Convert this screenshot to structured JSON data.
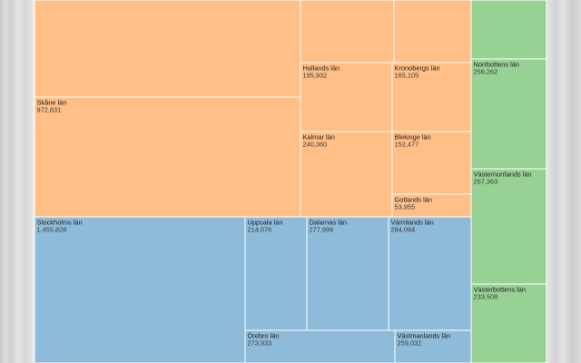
{
  "chart_data": {
    "type": "treemap",
    "groups": [
      {
        "color": "#ffbf86",
        "items": [
          {
            "id": "top-left",
            "label": "",
            "value": null
          },
          {
            "id": "top-mid",
            "label": "",
            "value": null
          },
          {
            "id": "top-right",
            "label": "",
            "value": null
          },
          {
            "id": "skane",
            "label": "Skåne län",
            "value": "972,831"
          },
          {
            "id": "hallands",
            "label": "Hallands län",
            "value": "195,932"
          },
          {
            "id": "kronobergs",
            "label": "Kronobergs län",
            "value": "165,105"
          },
          {
            "id": "kalmar",
            "label": "Kalmar län",
            "value": "240,360"
          },
          {
            "id": "blekinge",
            "label": "Blekinge län",
            "value": "152,477"
          },
          {
            "id": "gotlands",
            "label": "Gotlands län",
            "value": "53,955"
          }
        ]
      },
      {
        "color": "#8fbbda",
        "items": [
          {
            "id": "stockholms",
            "label": "Stockholms län",
            "value": "1,455,828"
          },
          {
            "id": "uppsala",
            "label": "Uppsala län",
            "value": "214,076"
          },
          {
            "id": "dalarnas",
            "label": "Dalarnas län",
            "value": "277,999"
          },
          {
            "id": "varmlands",
            "label": "Värmlands län",
            "value": "284,094"
          },
          {
            "id": "orebro",
            "label": "Örebro län",
            "value": "273,933"
          },
          {
            "id": "vastmanlands",
            "label": "Västmanlands län",
            "value": "259,032"
          }
        ]
      },
      {
        "color": "#98d194",
        "items": [
          {
            "id": "green-top",
            "label": "",
            "value": null
          },
          {
            "id": "norrbottens",
            "label": "Norrbottens län",
            "value": "256,262"
          },
          {
            "id": "vasternorrlands",
            "label": "Västernorrlands län",
            "value": "267,363"
          },
          {
            "id": "vasterbottens",
            "label": "Västerbottens län",
            "value": "233,508"
          }
        ]
      }
    ]
  }
}
